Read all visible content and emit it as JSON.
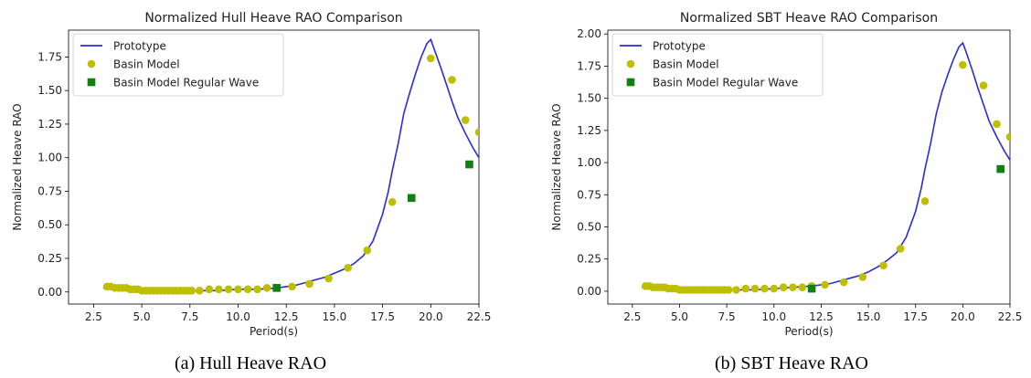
{
  "chart_data": [
    {
      "type": "line",
      "title": "Normalized Hull Heave RAO Comparison",
      "xlabel": "Period(s)",
      "ylabel": "Normalized Heave RAO",
      "caption": "(a) Hull Heave RAO",
      "xlim": [
        1.2,
        22.5
      ],
      "ylim": [
        -0.09,
        1.95
      ],
      "xticks": [
        "2.5",
        "5.0",
        "7.5",
        "10.0",
        "12.5",
        "15.0",
        "17.5",
        "20.0",
        "22.5"
      ],
      "xtick_values": [
        2.5,
        5.0,
        7.5,
        10.0,
        12.5,
        15.0,
        17.5,
        20.0,
        22.5
      ],
      "yticks": [
        "0.00",
        "0.25",
        "0.50",
        "0.75",
        "1.00",
        "1.25",
        "1.50",
        "1.75"
      ],
      "ytick_values": [
        0.0,
        0.25,
        0.5,
        0.75,
        1.0,
        1.25,
        1.5,
        1.75
      ],
      "legend_position": "top-left",
      "grid": false,
      "series": [
        {
          "name": "Prototype",
          "kind": "line",
          "color": "#2b2bd8",
          "x": [
            3.0,
            4.0,
            5.0,
            6.0,
            7.0,
            8.0,
            9.0,
            10.0,
            11.0,
            12.0,
            12.5,
            13.0,
            13.5,
            14.0,
            14.5,
            15.0,
            15.5,
            16.0,
            16.5,
            17.0,
            17.5,
            17.8,
            18.0,
            18.3,
            18.6,
            18.9,
            19.2,
            19.5,
            19.8,
            20.0,
            20.2,
            20.5,
            20.8,
            21.1,
            21.4,
            21.8,
            22.2,
            22.5
          ],
          "y": [
            0.03,
            0.02,
            0.01,
            0.01,
            0.01,
            0.01,
            0.01,
            0.02,
            0.02,
            0.03,
            0.04,
            0.05,
            0.07,
            0.09,
            0.11,
            0.14,
            0.17,
            0.21,
            0.27,
            0.38,
            0.58,
            0.75,
            0.9,
            1.1,
            1.33,
            1.48,
            1.62,
            1.75,
            1.85,
            1.88,
            1.8,
            1.68,
            1.55,
            1.42,
            1.3,
            1.18,
            1.07,
            1.0
          ]
        },
        {
          "name": "Basin Model",
          "kind": "scatter",
          "marker": "circle",
          "color": "#bfbf00",
          "x": [
            3.2,
            3.4,
            3.6,
            3.8,
            4.0,
            4.2,
            4.4,
            4.6,
            4.8,
            5.0,
            5.2,
            5.4,
            5.6,
            5.8,
            6.0,
            6.2,
            6.4,
            6.6,
            6.8,
            7.0,
            7.2,
            7.4,
            7.6,
            8.0,
            8.5,
            9.0,
            9.5,
            10.0,
            10.5,
            11.0,
            11.5,
            12.0,
            12.8,
            13.7,
            14.7,
            15.7,
            16.7,
            18.0,
            20.0,
            21.1,
            21.8,
            22.5
          ],
          "y": [
            0.04,
            0.04,
            0.03,
            0.03,
            0.03,
            0.03,
            0.02,
            0.02,
            0.02,
            0.01,
            0.01,
            0.01,
            0.01,
            0.01,
            0.01,
            0.01,
            0.01,
            0.01,
            0.01,
            0.01,
            0.01,
            0.01,
            0.01,
            0.01,
            0.02,
            0.02,
            0.02,
            0.02,
            0.02,
            0.02,
            0.03,
            0.03,
            0.04,
            0.06,
            0.1,
            0.18,
            0.31,
            0.67,
            1.74,
            1.58,
            1.28,
            1.19
          ]
        },
        {
          "name": "Basin Model Regular Wave",
          "kind": "scatter",
          "marker": "square",
          "color": "#118011",
          "x": [
            12.0,
            19.0,
            22.0
          ],
          "y": [
            0.03,
            0.7,
            0.95
          ]
        }
      ]
    },
    {
      "type": "line",
      "title": "Normalized SBT Heave RAO Comparison",
      "xlabel": "Period(s)",
      "ylabel": "Normalized Heave RAO",
      "caption": "(b) SBT Heave RAO",
      "xlim": [
        1.2,
        22.5
      ],
      "ylim": [
        -0.1,
        2.03
      ],
      "xticks": [
        "2.5",
        "5.0",
        "7.5",
        "10.0",
        "12.5",
        "15.0",
        "17.5",
        "20.0",
        "22.5"
      ],
      "xtick_values": [
        2.5,
        5.0,
        7.5,
        10.0,
        12.5,
        15.0,
        17.5,
        20.0,
        22.5
      ],
      "yticks": [
        "0.00",
        "0.25",
        "0.50",
        "0.75",
        "1.00",
        "1.25",
        "1.50",
        "1.75",
        "2.00"
      ],
      "ytick_values": [
        0.0,
        0.25,
        0.5,
        0.75,
        1.0,
        1.25,
        1.5,
        1.75,
        2.0
      ],
      "legend_position": "top-left",
      "grid": false,
      "series": [
        {
          "name": "Prototype",
          "kind": "line",
          "color": "#2b2bd8",
          "x": [
            3.0,
            4.0,
            5.0,
            6.0,
            7.0,
            8.0,
            9.0,
            10.0,
            11.0,
            12.0,
            12.5,
            13.0,
            13.5,
            14.0,
            14.5,
            15.0,
            15.5,
            16.0,
            16.5,
            17.0,
            17.5,
            17.8,
            18.0,
            18.3,
            18.6,
            18.9,
            19.2,
            19.5,
            19.8,
            20.0,
            20.2,
            20.5,
            20.8,
            21.1,
            21.4,
            21.8,
            22.2,
            22.5
          ],
          "y": [
            0.03,
            0.02,
            0.01,
            0.01,
            0.01,
            0.01,
            0.01,
            0.02,
            0.03,
            0.04,
            0.05,
            0.06,
            0.08,
            0.1,
            0.12,
            0.15,
            0.19,
            0.24,
            0.3,
            0.42,
            0.62,
            0.8,
            0.95,
            1.15,
            1.38,
            1.55,
            1.68,
            1.8,
            1.9,
            1.93,
            1.85,
            1.72,
            1.58,
            1.45,
            1.32,
            1.2,
            1.09,
            1.02
          ]
        },
        {
          "name": "Basin Model",
          "kind": "scatter",
          "marker": "circle",
          "color": "#bfbf00",
          "x": [
            3.2,
            3.4,
            3.6,
            3.8,
            4.0,
            4.2,
            4.4,
            4.6,
            4.8,
            5.0,
            5.2,
            5.4,
            5.6,
            5.8,
            6.0,
            6.2,
            6.4,
            6.6,
            6.8,
            7.0,
            7.2,
            7.4,
            7.6,
            8.0,
            8.5,
            9.0,
            9.5,
            10.0,
            10.5,
            11.0,
            11.5,
            12.0,
            12.7,
            13.7,
            14.7,
            15.8,
            16.7,
            18.0,
            20.0,
            21.1,
            21.8,
            22.5
          ],
          "y": [
            0.04,
            0.04,
            0.03,
            0.03,
            0.03,
            0.03,
            0.02,
            0.02,
            0.02,
            0.01,
            0.01,
            0.01,
            0.01,
            0.01,
            0.01,
            0.01,
            0.01,
            0.01,
            0.01,
            0.01,
            0.01,
            0.01,
            0.01,
            0.01,
            0.02,
            0.02,
            0.02,
            0.02,
            0.03,
            0.03,
            0.03,
            0.04,
            0.05,
            0.07,
            0.11,
            0.2,
            0.33,
            0.7,
            1.76,
            1.6,
            1.3,
            1.2
          ]
        },
        {
          "name": "Basin Model Regular Wave",
          "kind": "scatter",
          "marker": "square",
          "color": "#118011",
          "x": [
            12.0,
            22.0
          ],
          "y": [
            0.02,
            0.95
          ]
        }
      ]
    }
  ]
}
